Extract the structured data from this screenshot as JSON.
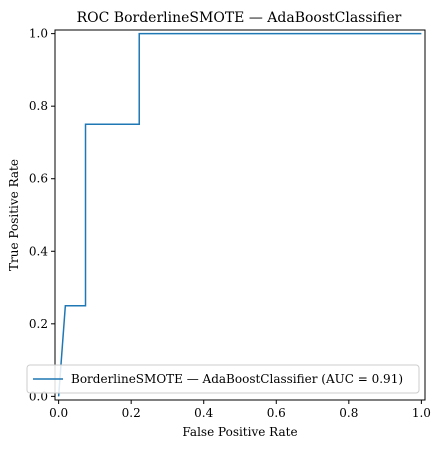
{
  "chart_data": {
    "type": "line",
    "title": "ROC BorderlineSMOTE — AdaBoostClassifier",
    "xlabel": "False Positive Rate",
    "ylabel": "True Positive Rate",
    "xlim": [
      -0.01,
      1.01
    ],
    "ylim": [
      -0.01,
      1.01
    ],
    "x_ticks": [
      "0.0",
      "0.2",
      "0.4",
      "0.6",
      "0.8",
      "1.0"
    ],
    "y_ticks": [
      "0.0",
      "0.2",
      "0.4",
      "0.6",
      "0.8",
      "1.0"
    ],
    "grid": false,
    "legend_position": "bottom-right",
    "series": [
      {
        "name": "BorderlineSMOTE — AdaBoostClassifier (AUC = 0.91)",
        "color": "#1f77b4",
        "x": [
          0.0,
          0.0,
          0.0185,
          0.0185,
          0.0741,
          0.0741,
          0.2222,
          0.2222,
          1.0
        ],
        "y": [
          0.0,
          0.0,
          0.25,
          0.25,
          0.25,
          0.75,
          0.75,
          1.0,
          1.0
        ]
      }
    ]
  }
}
